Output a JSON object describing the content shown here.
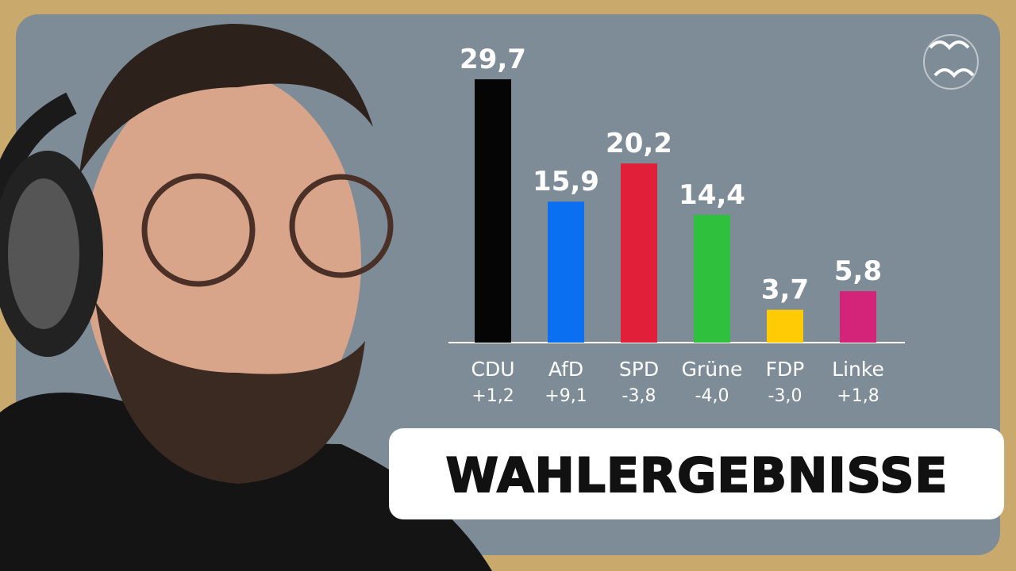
{
  "chart_data": {
    "type": "bar",
    "title": "WAHLERGEBNISSE",
    "categories": [
      "CDU",
      "AfD",
      "SPD",
      "Grüne",
      "FDP",
      "Linke"
    ],
    "values": [
      29.7,
      15.9,
      20.2,
      14.4,
      3.7,
      5.8
    ],
    "value_labels": [
      "29,7",
      "15,9",
      "20,2",
      "14,4",
      "3,7",
      "5,8"
    ],
    "change_labels": [
      "+1,2",
      "+9,1",
      "-3,8",
      "-4,0",
      "-3,0",
      "+1,8"
    ],
    "colors": [
      "#050505",
      "#0b6ff2",
      "#e21f38",
      "#2fc03e",
      "#ffcb05",
      "#d3247a"
    ]
  }
}
